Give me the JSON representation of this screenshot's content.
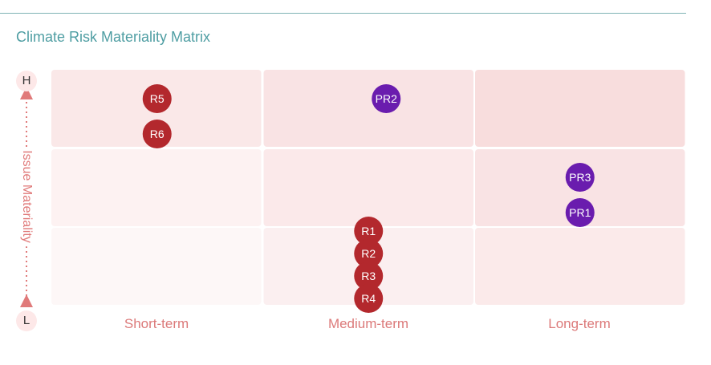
{
  "chart_data": {
    "type": "scatter",
    "title": "Climate Risk Materiality Matrix",
    "xlabel": "",
    "ylabel": "Issue Materiality",
    "x_categories": [
      "Short-term",
      "Medium-term",
      "Long-term"
    ],
    "y_levels_bottom_to_top": [
      "Low",
      "Medium",
      "High"
    ],
    "y_axis_ends": {
      "high": "H",
      "low": "L"
    },
    "points": [
      {
        "label": "R5",
        "x": "Short-term",
        "y": "High",
        "kind": "risk"
      },
      {
        "label": "R6",
        "x": "Short-term",
        "y": "High",
        "kind": "risk"
      },
      {
        "label": "PR2",
        "x": "Medium-term",
        "y": "High",
        "kind": "opportunity"
      },
      {
        "label": "PR3",
        "x": "Long-term",
        "y": "Medium",
        "kind": "opportunity"
      },
      {
        "label": "PR1",
        "x": "Long-term",
        "y": "Medium",
        "kind": "opportunity"
      },
      {
        "label": "R1",
        "x": "Medium-term",
        "y": "Low",
        "kind": "risk"
      },
      {
        "label": "R2",
        "x": "Medium-term",
        "y": "Low",
        "kind": "risk"
      },
      {
        "label": "R3",
        "x": "Medium-term",
        "y": "Low",
        "kind": "risk"
      },
      {
        "label": "R4",
        "x": "Medium-term",
        "y": "Low",
        "kind": "risk"
      }
    ],
    "colors": {
      "risk": "#b3282d",
      "opportunity": "#6a1cae",
      "cells": [
        [
          "#fdf7f7",
          "#fbeff0",
          "#fbeaea"
        ],
        [
          "#fdf2f2",
          "#fbe9ea",
          "#f9e3e4"
        ],
        [
          "#fae8e8",
          "#f9e3e4",
          "#f8dddd"
        ]
      ]
    }
  }
}
